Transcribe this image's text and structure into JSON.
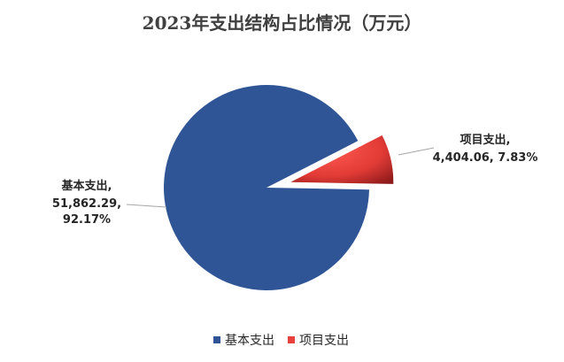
{
  "chart_data": {
    "type": "pie",
    "title": "2023年支出结构占比情况（万元）",
    "categories": [
      "基本支出",
      "项目支出"
    ],
    "values": [
      51862.29,
      4404.06
    ],
    "labels": [
      {
        "name": "基本支出,",
        "value": "51,862.29,",
        "percent": "92.17%"
      },
      {
        "name": "项目支出,",
        "value": "4,404.06, 7.83%"
      }
    ],
    "legend": {
      "placement": "bottom",
      "items": [
        "基本支出",
        "项目支出"
      ]
    },
    "colors": [
      "#2f5597",
      "#e8413b"
    ]
  }
}
